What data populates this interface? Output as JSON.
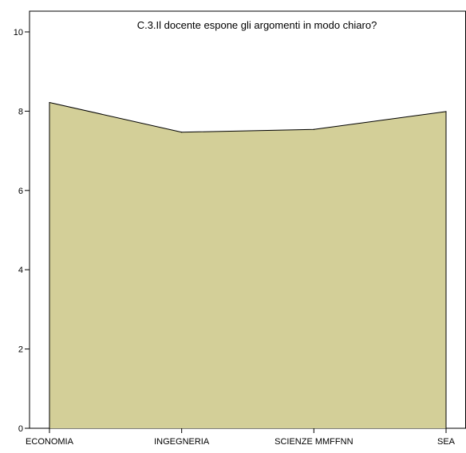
{
  "chart_data": {
    "type": "area",
    "title": "C.3.Il docente espone gli argomenti in modo chiaro?",
    "categories": [
      "ECONOMIA",
      "INGEGNERIA",
      "SCIENZE MMFFNN",
      "SEA"
    ],
    "series": [
      {
        "values": [
          8.22,
          7.47,
          7.54,
          7.99
        ]
      }
    ],
    "xlabel": "",
    "ylabel": "",
    "ylim": [
      0,
      10
    ],
    "yticks": [
      0,
      2,
      4,
      6,
      8,
      10
    ],
    "grid": false,
    "legend": "none",
    "colors": {
      "area_fill": "#d3cf98",
      "area_stroke": "#000000",
      "axis": "#000000",
      "frame": "#000000"
    }
  }
}
